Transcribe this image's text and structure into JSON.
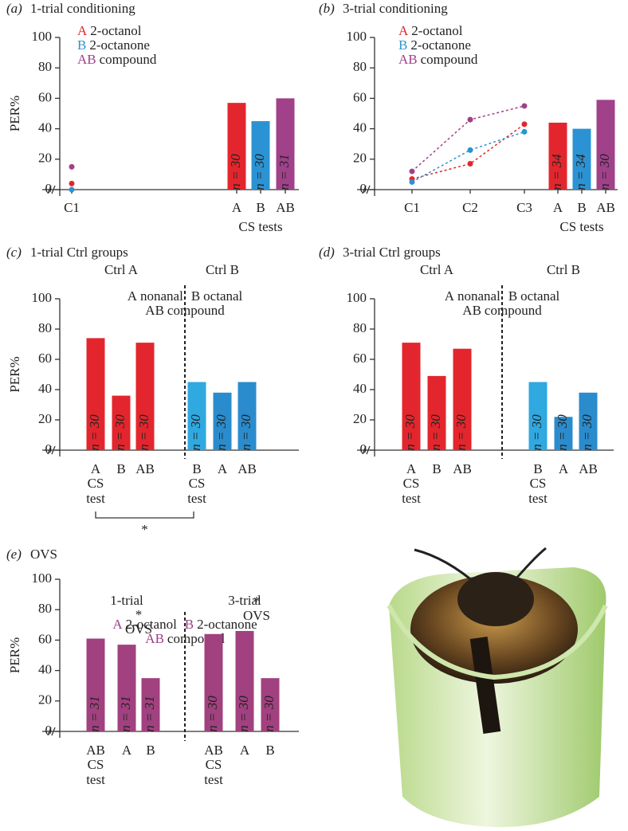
{
  "chart_data": [
    {
      "type": "trial_bar",
      "label": "(a)",
      "title": "1-trial conditioning",
      "ylabel": "PER%",
      "xlabel": "CS tests",
      "ylim": [
        0,
        100
      ],
      "yticks": [
        0,
        20,
        40,
        60,
        80,
        100
      ],
      "trial_categories": [
        "C1"
      ],
      "trial_lines": false,
      "series": [
        {
          "key": "A",
          "name": "2-octanol",
          "color": "#e3262d",
          "trial_values": [
            4
          ],
          "value": 57,
          "n_label": "n = 30"
        },
        {
          "key": "B",
          "name": "2-octanone",
          "color": "#2b93d3",
          "trial_values": [
            0
          ],
          "value": 45,
          "n_label": "n = 30"
        },
        {
          "key": "AB",
          "name": "compound",
          "color": "#a0418a",
          "trial_values": [
            15
          ],
          "value": 60,
          "n_label": "n = 31"
        }
      ]
    },
    {
      "type": "trial_bar",
      "label": "(b)",
      "title": "3-trial conditioning",
      "xlabel": "CS tests",
      "ylim": [
        0,
        100
      ],
      "yticks": [
        0,
        20,
        40,
        60,
        80,
        100
      ],
      "trial_categories": [
        "C1",
        "C2",
        "C3"
      ],
      "trial_lines": true,
      "series": [
        {
          "key": "A",
          "name": "2-octanol",
          "color": "#e3262d",
          "trial_values": [
            7,
            17,
            43
          ],
          "value": 44,
          "n_label": "n = 34"
        },
        {
          "key": "B",
          "name": "2-octanone",
          "color": "#2b93d3",
          "trial_values": [
            5,
            26,
            38
          ],
          "value": 40,
          "n_label": "n = 34"
        },
        {
          "key": "AB",
          "name": "compound",
          "color": "#a0418a",
          "trial_values": [
            12,
            46,
            55
          ],
          "value": 59,
          "n_label": "n = 30"
        }
      ]
    },
    {
      "type": "grouped_bar",
      "label": "(c)",
      "title": "1-trial Ctrl groups",
      "ylabel": "PER%",
      "ylim": [
        0,
        100
      ],
      "yticks": [
        0,
        20,
        40,
        60,
        80,
        100
      ],
      "legend": [
        {
          "key": "A",
          "text": "nonanal",
          "key_color": "#222222"
        },
        {
          "key": "B",
          "text": "octanal",
          "key_color": "#222222"
        },
        {
          "key": "AB",
          "text": "compound",
          "key_color": "#222222"
        }
      ],
      "groups": [
        {
          "name": "Ctrl A",
          "label_color": "#e3262d",
          "categories": [
            "A",
            "B",
            "AB"
          ],
          "colors": [
            "#e3262d",
            "#e3262d",
            "#e3262d"
          ],
          "values": [
            74,
            36,
            71
          ],
          "n_labels": [
            "n = 30",
            "n = 30",
            "n = 30"
          ],
          "cs_label": [
            "CS",
            "test"
          ]
        },
        {
          "name": "Ctrl B",
          "label_color": "#35a9df",
          "categories": [
            "B",
            "A",
            "AB"
          ],
          "colors": [
            "#30a8e0",
            "#2a8ccd",
            "#2a8ccd"
          ],
          "values": [
            45,
            38,
            45
          ],
          "n_labels": [
            "n = 30",
            "n = 30",
            "n = 30"
          ],
          "cs_label": [
            "CS",
            "test"
          ]
        }
      ],
      "significance": "*"
    },
    {
      "type": "grouped_bar",
      "label": "(d)",
      "title": "3-trial Ctrl groups",
      "ylim": [
        0,
        100
      ],
      "yticks": [
        0,
        20,
        40,
        60,
        80,
        100
      ],
      "legend": [
        {
          "key": "A",
          "text": "nonanal",
          "key_color": "#222222"
        },
        {
          "key": "B",
          "text": "octanal",
          "key_color": "#222222"
        },
        {
          "key": "AB",
          "text": "compound",
          "key_color": "#222222"
        }
      ],
      "groups": [
        {
          "name": "Ctrl A",
          "label_color": "#e3262d",
          "categories": [
            "A",
            "B",
            "AB"
          ],
          "colors": [
            "#e3262d",
            "#e3262d",
            "#e3262d"
          ],
          "values": [
            71,
            49,
            67
          ],
          "n_labels": [
            "n = 30",
            "n = 30",
            "n = 30"
          ],
          "cs_label": [
            "CS",
            "test"
          ]
        },
        {
          "name": "Ctrl B",
          "label_color": "#35a9df",
          "categories": [
            "B",
            "A",
            "AB"
          ],
          "colors": [
            "#30a8e0",
            "#2a8ccd",
            "#2a8ccd"
          ],
          "values": [
            45,
            22,
            38
          ],
          "n_labels": [
            "n = 30",
            "n = 30",
            "n = 30"
          ],
          "cs_label": [
            "CS",
            "test"
          ]
        }
      ]
    },
    {
      "type": "grouped_bar",
      "label": "(e)",
      "title": "OVS",
      "ylabel": "PER%",
      "ylim": [
        0,
        100
      ],
      "yticks": [
        0,
        20,
        40,
        60,
        80,
        100
      ],
      "legend": [
        {
          "key": "A",
          "text": "2-octanol",
          "key_color": "#9b3f86"
        },
        {
          "key": "B",
          "text": "2-octanone",
          "key_color": "#9b3f86"
        },
        {
          "key": "AB",
          "text": "compound",
          "key_color": "#9b3f86"
        }
      ],
      "groups": [
        {
          "name": "1-trial",
          "label_color": "#9b3f86",
          "categories": [
            "AB",
            "A",
            "B"
          ],
          "colors": [
            "#a1417f",
            "#a1417f",
            "#a1417f"
          ],
          "values": [
            61,
            57,
            35
          ],
          "n_labels": [
            "n = 31",
            "n = 31",
            "n = 31"
          ],
          "cs_label": [
            "CS",
            "test"
          ],
          "stars": [
            null,
            "*",
            null
          ],
          "notes": [
            null,
            "OVS",
            null
          ]
        },
        {
          "name": "3-trial",
          "label_color": "#9b3f86",
          "categories": [
            "AB",
            "A",
            "B"
          ],
          "colors": [
            "#a1417f",
            "#a1417f",
            "#a1417f"
          ],
          "values": [
            64,
            66,
            35
          ],
          "n_labels": [
            "n = 30",
            "n = 30",
            "n = 30"
          ],
          "cs_label": [
            "CS",
            "test"
          ],
          "stars": [
            null,
            "*",
            null
          ],
          "notes": [
            null,
            "OVS",
            null
          ]
        }
      ]
    }
  ]
}
